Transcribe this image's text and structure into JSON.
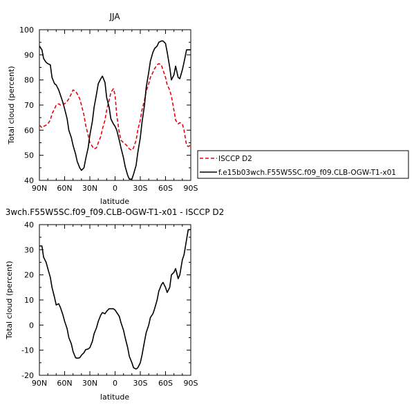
{
  "chart_data": [
    {
      "type": "line",
      "title": "JJA",
      "xlabel": "latitude",
      "ylabel": "Total cloud (percent)",
      "xlim": [
        90,
        -90
      ],
      "ylim": [
        40,
        100
      ],
      "xticks": [
        "90N",
        "60N",
        "30N",
        "0",
        "30S",
        "60S",
        "90S"
      ],
      "yticks": [
        "40",
        "50",
        "60",
        "70",
        "80",
        "90",
        "100"
      ],
      "series": [
        {
          "name": "ISCCP D2",
          "color": "#e8000b",
          "dash": "dashed",
          "x": [
            90,
            87,
            85,
            82,
            80,
            77,
            75,
            72,
            70,
            67,
            65,
            62,
            60,
            57,
            55,
            52,
            50,
            47,
            45,
            42,
            40,
            37,
            35,
            32,
            30,
            27,
            25,
            22,
            20,
            17,
            15,
            12,
            10,
            7,
            5,
            2,
            0,
            -2,
            -5,
            -7,
            -10,
            -12,
            -15,
            -17,
            -20,
            -22,
            -25,
            -27,
            -30,
            -32,
            -35,
            -37,
            -40,
            -42,
            -45,
            -47,
            -50,
            -52,
            -55,
            -57,
            -60,
            -62,
            -65,
            -67,
            -70,
            -72,
            -75,
            -77,
            -80,
            -82,
            -85,
            -87,
            -90
          ],
          "values": [
            62,
            61,
            61.5,
            62,
            62.5,
            64,
            66.5,
            68.5,
            70,
            70.5,
            70,
            70.5,
            70.5,
            71.5,
            72.5,
            74.5,
            76,
            75.5,
            74.5,
            72.5,
            70,
            66,
            62,
            58,
            55,
            53.5,
            52.5,
            53,
            55,
            57.5,
            60.5,
            64,
            68,
            72,
            75,
            76.5,
            74,
            66,
            59,
            56,
            55,
            54.5,
            53.5,
            52.5,
            52,
            53,
            56,
            60,
            64,
            68,
            72,
            75.5,
            78.5,
            81,
            83,
            84.5,
            86,
            86.5,
            86,
            84,
            81,
            78,
            76,
            73.5,
            68,
            64,
            62.5,
            63,
            62.5,
            60,
            54,
            53.5,
            54
          ]
        },
        {
          "name": "f.e15b03wch.F55W5SC.f09_f09.CLB-OGW-T1-x01",
          "color": "#000000",
          "dash": "solid",
          "x": [
            90,
            87,
            85,
            82,
            80,
            77,
            75,
            72,
            70,
            67,
            65,
            62,
            60,
            57,
            55,
            52,
            50,
            47,
            45,
            42,
            40,
            37,
            35,
            32,
            30,
            27,
            25,
            22,
            20,
            17,
            15,
            12,
            10,
            7,
            5,
            2,
            0,
            -2,
            -5,
            -7,
            -10,
            -12,
            -15,
            -17,
            -20,
            -22,
            -25,
            -27,
            -30,
            -32,
            -35,
            -37,
            -40,
            -42,
            -45,
            -47,
            -50,
            -52,
            -55,
            -57,
            -60,
            -62,
            -65,
            -67,
            -70,
            -72,
            -75,
            -77,
            -80,
            -82,
            -85,
            -87,
            -90
          ],
          "values": [
            93.5,
            92,
            88.5,
            87,
            86.5,
            86,
            81,
            78.5,
            78,
            76,
            74,
            71,
            68.5,
            64.5,
            60,
            57,
            54,
            50.5,
            47.5,
            45,
            44,
            45,
            48.5,
            53,
            58,
            63.5,
            69,
            74.5,
            78.5,
            80.5,
            81.5,
            79,
            73,
            69,
            64.5,
            62.5,
            61.5,
            60,
            56,
            53,
            49,
            45.5,
            42,
            40.5,
            40.5,
            42.5,
            46,
            51,
            57,
            63,
            70,
            77,
            83,
            87.5,
            91,
            92.5,
            93.5,
            95,
            95.5,
            95.5,
            94.5,
            91,
            85,
            80,
            82,
            85.5,
            81,
            80.5,
            84,
            87,
            92,
            92,
            92
          ]
        }
      ]
    },
    {
      "type": "line",
      "title": "3wch.F55W5SC.f09_f09.CLB-OGW-T1-x01 - ISCCP D2",
      "xlabel": "latitude",
      "ylabel": "Total cloud (percent)",
      "xlim": [
        90,
        -90
      ],
      "ylim": [
        -20,
        40
      ],
      "xticks": [
        "90N",
        "60N",
        "30N",
        "0",
        "30S",
        "60S",
        "90S"
      ],
      "yticks": [
        "-20",
        "-10",
        "0",
        "10",
        "20",
        "30",
        "40"
      ],
      "series": [
        {
          "color": "#000000",
          "dash": "solid",
          "x": [
            90,
            87,
            85,
            82,
            80,
            77,
            75,
            72,
            70,
            67,
            65,
            62,
            60,
            57,
            55,
            52,
            50,
            47,
            45,
            42,
            40,
            37,
            35,
            32,
            30,
            27,
            25,
            22,
            20,
            17,
            15,
            12,
            10,
            7,
            5,
            2,
            0,
            -2,
            -5,
            -7,
            -10,
            -12,
            -15,
            -17,
            -20,
            -22,
            -25,
            -27,
            -30,
            -32,
            -35,
            -37,
            -40,
            -42,
            -45,
            -47,
            -50,
            -52,
            -55,
            -57,
            -60,
            -62,
            -65,
            -67,
            -70,
            -72,
            -75,
            -77,
            -80,
            -82,
            -85,
            -87,
            -90
          ],
          "values": [
            31.5,
            31.5,
            27,
            25,
            22.5,
            19,
            15,
            11,
            8,
            8.5,
            7,
            4,
            1.5,
            -1.5,
            -5,
            -7.5,
            -10.5,
            -13,
            -13.2,
            -13,
            -12,
            -11,
            -9.8,
            -9.5,
            -9,
            -6.5,
            -3.5,
            -1,
            1.5,
            4,
            5,
            4.5,
            5.5,
            6.5,
            6.5,
            6.5,
            6,
            5,
            3.5,
            1,
            -2,
            -5,
            -9,
            -12.5,
            -15,
            -17,
            -17.5,
            -17,
            -15,
            -12,
            -6.5,
            -3,
            0,
            3,
            4.5,
            6.5,
            10,
            13.5,
            16,
            17,
            15,
            13,
            15,
            20,
            21,
            22.5,
            18.5,
            20,
            26,
            28,
            34,
            38,
            38
          ]
        }
      ]
    }
  ]
}
